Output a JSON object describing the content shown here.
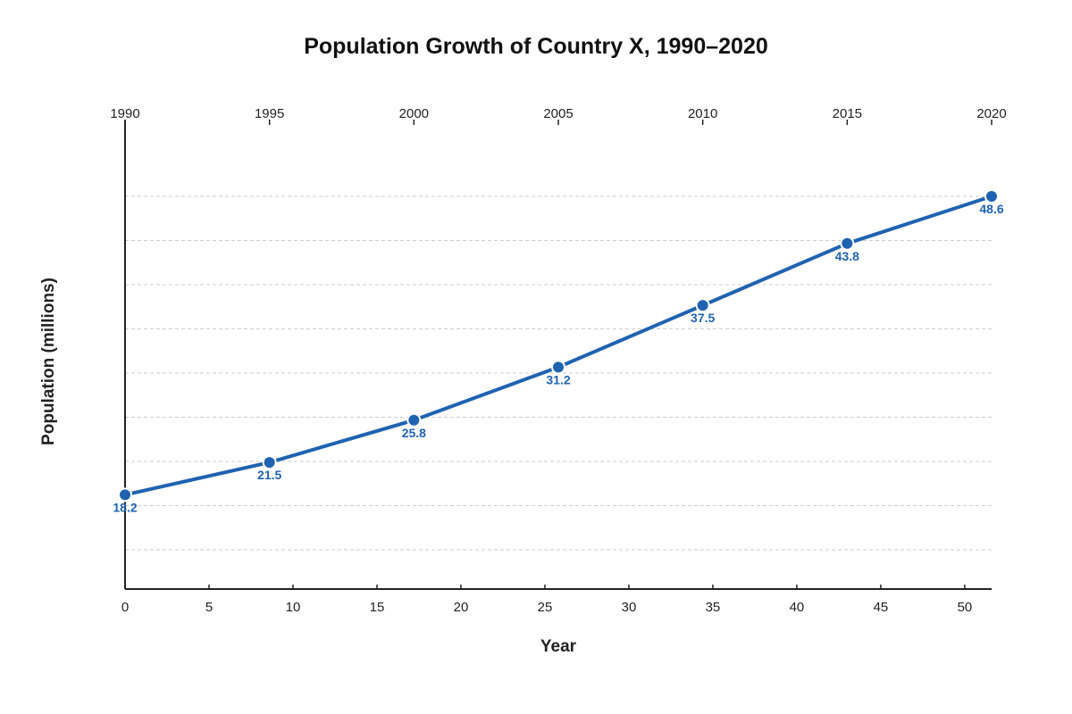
{
  "chart_data": {
    "type": "line",
    "title": "Population Growth of Country X, 1990–2020",
    "xlabel": "Year",
    "ylabel": "Population (millions)",
    "x": [
      1990,
      1995,
      2000,
      2005,
      2010,
      2015,
      2020
    ],
    "series": [
      {
        "values": [
          18.2,
          21.5,
          25.8,
          31.2,
          37.5,
          43.8,
          48.6
        ],
        "value_labels": [
          "18.2",
          "21.5",
          "25.8",
          "31.2",
          "37.5",
          "43.8",
          "48.6"
        ],
        "color": "#1f63b0"
      }
    ],
    "top_axis": {
      "labels": [
        "1990",
        "1995",
        "2000",
        "2005",
        "2010",
        "2015",
        "2020"
      ],
      "range": [
        1990,
        2020
      ]
    },
    "bottom_axis": {
      "labels": [
        "0",
        "5",
        "10",
        "15",
        "20",
        "25",
        "30",
        "35",
        "40",
        "45",
        "50"
      ],
      "range": [
        0,
        51.6
      ]
    },
    "ylim": [
      8.6,
      53.6
    ],
    "y_grid_values": [
      12.6,
      17.1,
      21.6,
      26.1,
      30.6,
      35.1,
      39.6,
      44.1,
      48.6
    ],
    "grid": true,
    "legend": "none"
  }
}
